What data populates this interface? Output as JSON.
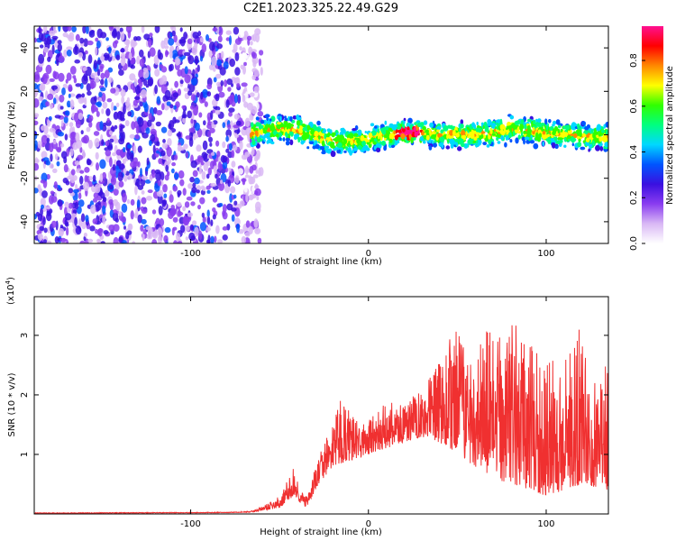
{
  "title": "C2E1.2023.325.22.49.G29",
  "colors": {
    "snr_line": "#f03030",
    "axis": "#000000",
    "background": "#ffffff"
  },
  "chart_data": [
    {
      "type": "heatmap",
      "name": "spectrogram",
      "xlabel": "Height of straight line (km)",
      "ylabel": "Frequency (Hz)",
      "xlim": [
        -188,
        135
      ],
      "ylim": [
        -50,
        50
      ],
      "xticks": [
        -100,
        0,
        100
      ],
      "yticks": [
        -40,
        -20,
        0,
        20,
        40
      ],
      "grid": false,
      "colorbar": {
        "label": "Normalized spectral amplitude",
        "range": [
          0,
          0.95
        ],
        "ticks": [
          0.0,
          0.2,
          0.4,
          0.6,
          0.8
        ],
        "colormap": [
          "#ffffff",
          "#d9b8f5",
          "#8a3cf0",
          "#3a10e0",
          "#0055ff",
          "#00d8ff",
          "#00ff80",
          "#30ff00",
          "#ffff00",
          "#ff8800",
          "#ff0000",
          "#ff1090"
        ]
      },
      "noise_region_x": [
        -188,
        -66
      ],
      "signal_center_hz": [
        [
          -66,
          0
        ],
        [
          -60,
          2
        ],
        [
          -50,
          3
        ],
        [
          -40,
          2
        ],
        [
          -30,
          0
        ],
        [
          -20,
          -3
        ],
        [
          -10,
          -3
        ],
        [
          0,
          -2
        ],
        [
          10,
          0
        ],
        [
          20,
          1
        ],
        [
          30,
          1
        ],
        [
          40,
          0
        ],
        [
          50,
          0
        ],
        [
          60,
          0
        ],
        [
          70,
          1
        ],
        [
          80,
          3
        ],
        [
          90,
          2
        ],
        [
          100,
          1
        ],
        [
          110,
          0
        ],
        [
          120,
          -1
        ],
        [
          135,
          -1
        ]
      ],
      "signal_width_hz": 8
    },
    {
      "type": "line",
      "name": "snr",
      "xlabel": "Height of straight line (km)",
      "ylabel": "SNR (10 * v/v)",
      "y_multiplier_label": "(x10",
      "y_multiplier_exp": "4",
      "y_multiplier_close": ")",
      "xlim": [
        -188,
        135
      ],
      "ylim": [
        0,
        3.65
      ],
      "xticks": [
        -100,
        0,
        100
      ],
      "yticks": [
        1,
        2,
        3
      ],
      "grid": false,
      "envelope": [
        [
          -188,
          0.02
        ],
        [
          -80,
          0.03
        ],
        [
          -66,
          0.05
        ],
        [
          -58,
          0.15
        ],
        [
          -50,
          0.3
        ],
        [
          -45,
          0.6
        ],
        [
          -42,
          0.8
        ],
        [
          -38,
          0.4
        ],
        [
          -34,
          0.3
        ],
        [
          -30,
          0.8
        ],
        [
          -25,
          1.2
        ],
        [
          -20,
          1.5
        ],
        [
          -15,
          2.0
        ],
        [
          -10,
          1.7
        ],
        [
          -5,
          1.5
        ],
        [
          0,
          1.6
        ],
        [
          5,
          1.7
        ],
        [
          10,
          1.9
        ],
        [
          15,
          2.0
        ],
        [
          20,
          1.8
        ],
        [
          25,
          2.0
        ],
        [
          30,
          2.1
        ],
        [
          35,
          2.3
        ],
        [
          40,
          2.6
        ],
        [
          45,
          3.0
        ],
        [
          50,
          3.1
        ],
        [
          55,
          2.7
        ],
        [
          60,
          2.9
        ],
        [
          65,
          3.2
        ],
        [
          70,
          3.0
        ],
        [
          75,
          3.2
        ],
        [
          80,
          3.5
        ],
        [
          85,
          3.0
        ],
        [
          90,
          2.9
        ],
        [
          95,
          2.7
        ],
        [
          100,
          2.8
        ],
        [
          105,
          2.5
        ],
        [
          110,
          2.8
        ],
        [
          115,
          2.9
        ],
        [
          120,
          3.2
        ],
        [
          125,
          2.6
        ],
        [
          130,
          2.4
        ],
        [
          135,
          2.6
        ]
      ],
      "floor": [
        [
          -188,
          0.01
        ],
        [
          -80,
          0.02
        ],
        [
          -66,
          0.03
        ],
        [
          -50,
          0.1
        ],
        [
          -42,
          0.3
        ],
        [
          -35,
          0.1
        ],
        [
          -28,
          0.5
        ],
        [
          -20,
          0.8
        ],
        [
          -10,
          0.9
        ],
        [
          0,
          1.0
        ],
        [
          10,
          1.1
        ],
        [
          20,
          1.2
        ],
        [
          30,
          1.3
        ],
        [
          40,
          1.2
        ],
        [
          50,
          1.0
        ],
        [
          60,
          0.8
        ],
        [
          70,
          0.6
        ],
        [
          80,
          0.5
        ],
        [
          90,
          0.4
        ],
        [
          100,
          0.3
        ],
        [
          110,
          0.4
        ],
        [
          120,
          0.5
        ],
        [
          135,
          0.4
        ]
      ]
    }
  ]
}
